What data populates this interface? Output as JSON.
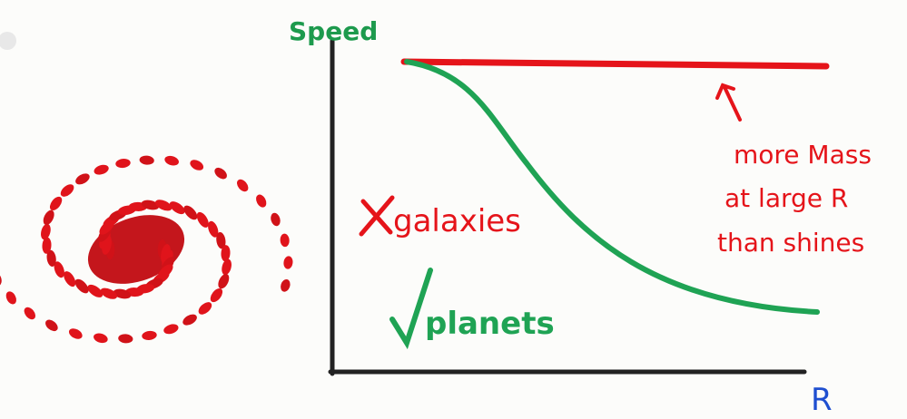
{
  "axes": {
    "y_label": "Speed",
    "x_label": "R"
  },
  "labels": {
    "galaxies": "galaxies",
    "planets": "planets"
  },
  "annotation": {
    "lines": [
      "more Mass",
      "at large R",
      "than shines"
    ]
  }
}
